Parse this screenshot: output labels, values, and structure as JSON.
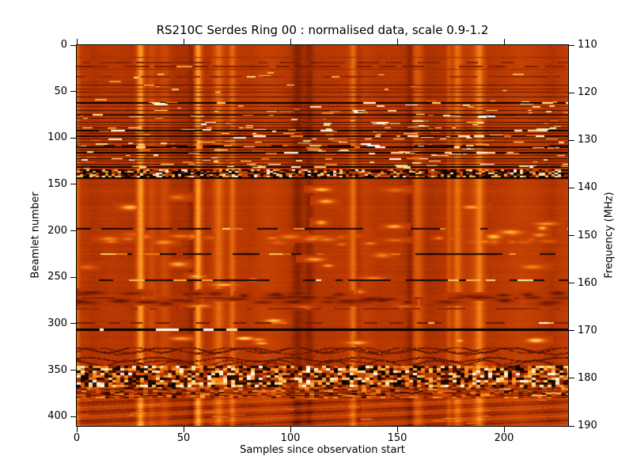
{
  "chart_data": {
    "type": "heatmap",
    "title": "RS210C Serdes Ring 00 : normalised data, scale 0.9-1.2",
    "xlabel": "Samples since observation start",
    "ylabel_left": "Beamlet number",
    "ylabel_right": "Frequency (MHz)",
    "xlim": [
      0,
      230
    ],
    "ylim_beamlet": [
      0,
      410
    ],
    "ylim_freq": [
      110,
      190
    ],
    "xticks": [
      0,
      50,
      100,
      150,
      200
    ],
    "yticks_left": [
      0,
      50,
      100,
      150,
      200,
      250,
      300,
      350,
      400
    ],
    "yticks_right": [
      110,
      120,
      130,
      140,
      150,
      160,
      170,
      180,
      190
    ],
    "value_scale": [
      0.9,
      1.2
    ],
    "base_value": 1.0,
    "colormap_stops": [
      [
        0.9,
        "#000000"
      ],
      [
        0.928,
        "#380c00"
      ],
      [
        0.958,
        "#7a1c00"
      ],
      [
        1.0,
        "#bc3a02"
      ],
      [
        1.05,
        "#da5a08"
      ],
      [
        1.1,
        "#f8891c"
      ],
      [
        1.15,
        "#ffc24c"
      ],
      [
        1.185,
        "#ffe8a8"
      ],
      [
        1.2,
        "#ffffff"
      ]
    ],
    "features": [
      {
        "t": "line",
        "b": 13,
        "v": 0.985,
        "w": 1
      },
      {
        "t": "dash",
        "b": 18,
        "v": 0.968,
        "bright": 0.02
      },
      {
        "t": "dash",
        "b": 22,
        "v": 0.962,
        "bright": 0.03
      },
      {
        "t": "line",
        "b": 26,
        "v": 0.975,
        "w": 1
      },
      {
        "t": "dash",
        "b": 33,
        "v": 0.975,
        "bright": 0.02
      },
      {
        "t": "line",
        "b": 43,
        "v": 0.935,
        "w": 1.4,
        "wd": 0.03
      },
      {
        "t": "line",
        "b": 47,
        "v": 0.965,
        "w": 1
      },
      {
        "t": "line",
        "b": 51,
        "v": 0.95,
        "w": 1
      },
      {
        "t": "line",
        "b": 56,
        "v": 0.94,
        "w": 1.2
      },
      {
        "t": "line",
        "b": 62,
        "v": 0.895,
        "w": 2.4,
        "wd": 0.1
      },
      {
        "t": "line",
        "b": 66,
        "v": 0.955,
        "w": 1
      },
      {
        "t": "line",
        "b": 70,
        "v": 0.93,
        "w": 1.3,
        "wd": 0.03
      },
      {
        "t": "line",
        "b": 75,
        "v": 0.92,
        "w": 1.5,
        "wd": 0.06
      },
      {
        "t": "line",
        "b": 79,
        "v": 0.945,
        "w": 1
      },
      {
        "t": "line",
        "b": 83,
        "v": 0.93,
        "w": 1.3,
        "wd": 0.06
      },
      {
        "t": "line",
        "b": 86,
        "v": 0.95,
        "w": 1
      },
      {
        "t": "line",
        "b": 89,
        "v": 0.92,
        "w": 1.4,
        "wd": 0.09
      },
      {
        "t": "line",
        "b": 92,
        "v": 0.905,
        "w": 1.6,
        "wd": 0.09
      },
      {
        "t": "line",
        "b": 95,
        "v": 0.93,
        "w": 1.2,
        "wd": 0.05
      },
      {
        "t": "line",
        "b": 98,
        "v": 0.915,
        "w": 1.5,
        "wd": 0.1
      },
      {
        "t": "line",
        "b": 101,
        "v": 0.94,
        "w": 1,
        "wd": 0.05
      },
      {
        "t": "line",
        "b": 104,
        "v": 0.92,
        "w": 1.4,
        "wd": 0.08
      },
      {
        "t": "dash",
        "b": 107,
        "v": 0.93,
        "bright": 0.06
      },
      {
        "t": "line",
        "b": 110,
        "v": 0.91,
        "w": 1.5,
        "wd": 0.12
      },
      {
        "t": "line",
        "b": 113,
        "v": 0.93,
        "w": 1.2,
        "wd": 0.06
      },
      {
        "t": "line",
        "b": 116,
        "v": 0.893,
        "w": 2.4,
        "wd": 0.12
      },
      {
        "t": "line",
        "b": 119,
        "v": 0.94,
        "w": 1,
        "wd": 0.05
      },
      {
        "t": "line",
        "b": 122,
        "v": 0.91,
        "w": 1.4,
        "wd": 0.1
      },
      {
        "t": "line",
        "b": 125,
        "v": 0.945,
        "w": 1,
        "wd": 0.04
      },
      {
        "t": "line",
        "b": 128,
        "v": 0.92,
        "w": 1.3,
        "wd": 0.08
      },
      {
        "t": "line",
        "b": 131,
        "v": 0.9,
        "w": 1.6,
        "wd": 0.12
      },
      {
        "t": "speck",
        "b0": 133.5,
        "b1": 141.5,
        "black": 0.45,
        "white": 0.22
      },
      {
        "t": "line",
        "b": 143.5,
        "v": 0.9,
        "w": 1.6,
        "wd": 0.04
      },
      {
        "t": "wdash",
        "b0": 59,
        "b1": 133,
        "n": 120,
        "vmin": 1.16,
        "vmax": 1.21
      },
      {
        "t": "wdash",
        "b0": 59,
        "b1": 133,
        "n": 80,
        "vmin": 1.06,
        "vmax": 1.12
      },
      {
        "t": "wdash",
        "b0": 28,
        "b1": 58,
        "n": 16,
        "vmin": 1.1,
        "vmax": 1.2
      },
      {
        "t": "dash",
        "b": 197,
        "v": 0.915,
        "bright": 0.15
      },
      {
        "t": "blobs",
        "b0": 203,
        "b1": 214,
        "n": 30,
        "vmin": 1.05,
        "vmax": 1.11
      },
      {
        "t": "dash",
        "b": 224,
        "v": 0.915,
        "bright": 0.18
      },
      {
        "t": "dots",
        "b0": 150,
        "b1": 300,
        "n": 28,
        "vmin": 1.06,
        "vmax": 1.16
      },
      {
        "t": "dash",
        "b": 252,
        "v": 0.91,
        "bright": 0.22
      },
      {
        "t": "mottled",
        "b0": 266,
        "b1": 278,
        "n": 46,
        "v": 0.962
      },
      {
        "t": "dash",
        "b": 283,
        "v": 0.97,
        "bright": 0.02
      },
      {
        "t": "dash",
        "b": 298,
        "v": 0.955,
        "bright": 0.04
      },
      {
        "t": "line",
        "b": 306.5,
        "v": 0.885,
        "w": 3,
        "wd": 0.1
      },
      {
        "t": "dots",
        "b0": 315,
        "b1": 321,
        "n": 7,
        "vmin": 1.1,
        "vmax": 1.19
      },
      {
        "t": "wavy",
        "b0": 326,
        "b1": 344,
        "amp": 0.05
      },
      {
        "t": "noise",
        "b0": 345,
        "b1": 367
      },
      {
        "t": "noise2",
        "b0": 368,
        "b1": 379
      },
      {
        "t": "wavytex",
        "b0": 380,
        "b1": 410,
        "amp": 0.035
      }
    ]
  }
}
